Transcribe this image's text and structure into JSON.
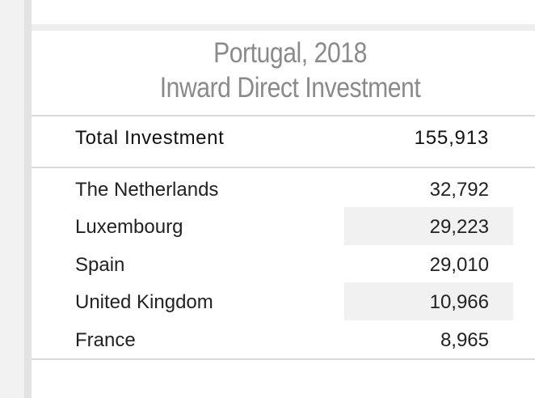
{
  "title": {
    "line1": "Portugal, 2018",
    "line2": "Inward Direct Investment"
  },
  "total": {
    "label": "Total Investment",
    "value": "155,913"
  },
  "rows": [
    {
      "country": "The Netherlands",
      "value": "32,792"
    },
    {
      "country": "Luxembourg",
      "value": "29,223"
    },
    {
      "country": "Spain",
      "value": "29,010"
    },
    {
      "country": "United Kingdom",
      "value": "10,966"
    },
    {
      "country": "France",
      "value": "8,965"
    }
  ],
  "colors": {
    "title": "#8a8a8a",
    "text": "#222222",
    "row_shade": "#f1f1f1",
    "divider": "#d9d9d9"
  }
}
